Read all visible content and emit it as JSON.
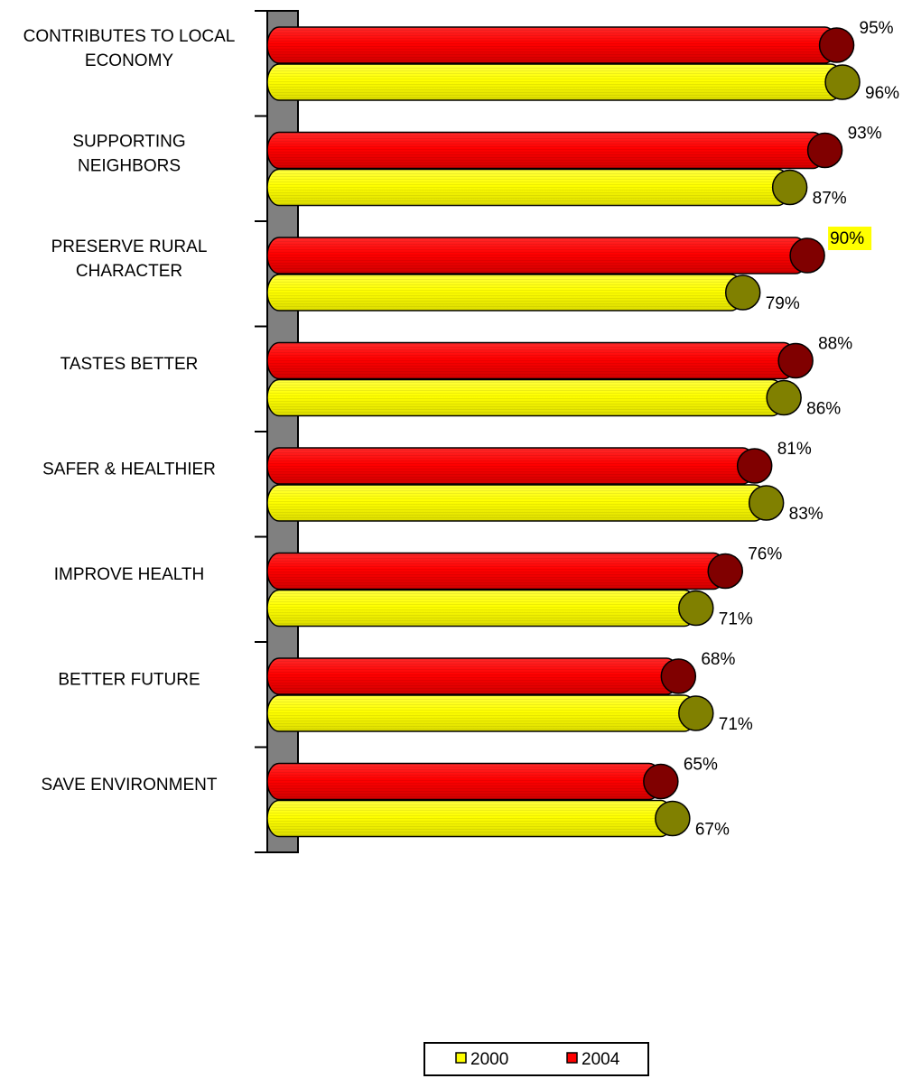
{
  "chart_data": {
    "type": "bar",
    "orientation": "horizontal",
    "categories": [
      "CONTRIBUTES TO LOCAL ECONOMY",
      "SUPPORTING NEIGHBORS",
      "PRESERVE RURAL CHARACTER",
      "TASTES BETTER",
      "SAFER & HEALTHIER",
      "IMPROVE HEALTH",
      "BETTER FUTURE",
      "SAVE ENVIRONMENT"
    ],
    "category_lines": [
      [
        "CONTRIBUTES TO LOCAL",
        "ECONOMY"
      ],
      [
        "SUPPORTING",
        "NEIGHBORS"
      ],
      [
        "PRESERVE RURAL",
        "CHARACTER"
      ],
      [
        "TASTES BETTER"
      ],
      [
        "SAFER & HEALTHIER"
      ],
      [
        "IMPROVE HEALTH"
      ],
      [
        "BETTER FUTURE"
      ],
      [
        "SAVE ENVIRONMENT"
      ]
    ],
    "series": [
      {
        "name": "2000",
        "values": [
          96,
          87,
          79,
          86,
          83,
          71,
          71,
          67
        ],
        "labels": [
          "96%",
          "87%",
          "79%",
          "86%",
          "83%",
          "71%",
          "71%",
          "67%"
        ],
        "color": "#ffff00",
        "cap_color": "#808000"
      },
      {
        "name": "2004",
        "values": [
          95,
          93,
          90,
          88,
          81,
          76,
          68,
          65
        ],
        "labels": [
          "95%",
          "93%",
          "90%",
          "88%",
          "81%",
          "76%",
          "68%",
          "65%"
        ],
        "color": "#ff0000",
        "cap_color": "#800000"
      }
    ],
    "highlight": {
      "series": "2004",
      "category": "PRESERVE RURAL CHARACTER",
      "color": "#ffff00"
    },
    "xlim": [
      0,
      100
    ],
    "grid": false,
    "legend": {
      "placement": "bottom",
      "entries": [
        "2000",
        "2004"
      ]
    }
  }
}
